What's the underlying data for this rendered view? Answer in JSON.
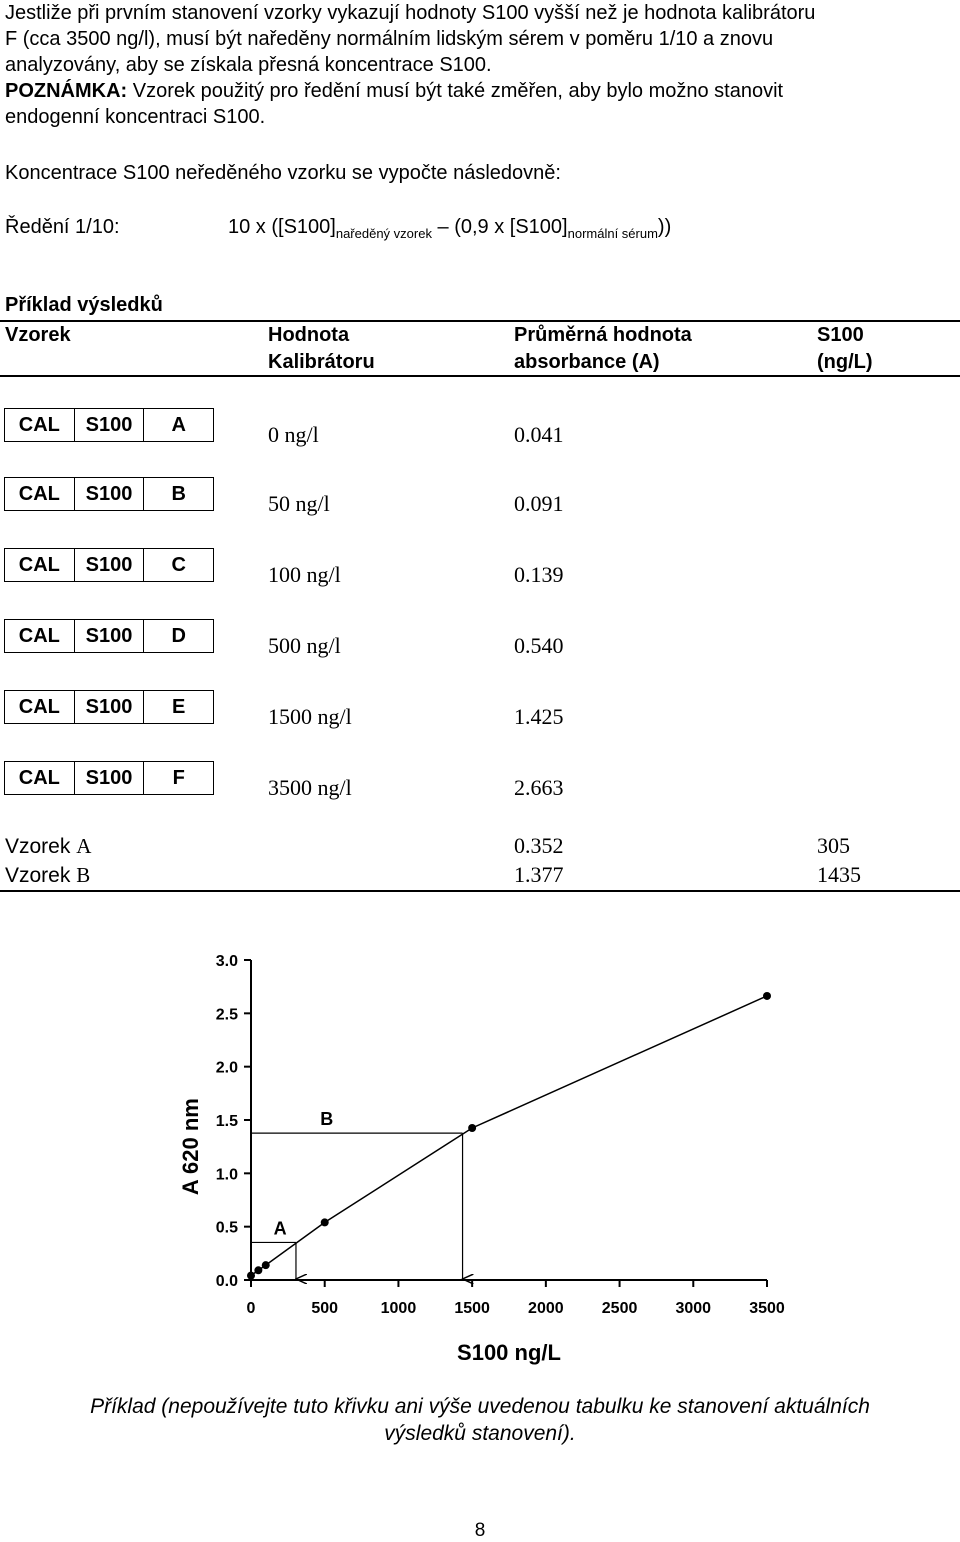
{
  "intro": {
    "line1": "Jestliže při prvním stanovení vzorky vykazují hodnoty S100 vyšší než je hodnota kalibrátoru",
    "line2": "F (cca 3500 ng/l), musí být naředěny normálním lidským sérem v poměru 1/10 a znovu",
    "line3": "analyzovány, aby se získala přesná koncentrace S100.",
    "note_label": "POZNÁMKA:",
    "note_text1": " Vzorek použitý pro ředění musí být také změřen, aby bylo možno stanovit",
    "note_text2": "endogenní koncentraci S100."
  },
  "calc": {
    "sentence": "Koncentrace S100 neředěného vzorku se vypočte následovně:",
    "label": "Ředění 1/10:",
    "f1": "10 x ([S100]",
    "sub1": "naředěný vzorek",
    "f2": " – (0,9 x [S100]",
    "sub2": "normální sérum",
    "f3": "))"
  },
  "results": {
    "title": "Příklad výsledků",
    "headers": {
      "sample": "Vzorek",
      "cal_value_1": "Hodnota",
      "cal_value_2": "Kalibrátoru",
      "abs_1": "Průměrná hodnota",
      "abs_2": "absorbance (A)",
      "s100_1": "S100",
      "s100_2": "(ng/L)"
    },
    "calibrators": [
      {
        "c1": "CAL",
        "c2": "S100",
        "c3": "A",
        "value": "0 ng/l",
        "abs": "0.041"
      },
      {
        "c1": "CAL",
        "c2": "S100",
        "c3": "B",
        "value": "50 ng/l",
        "abs": "0.091"
      },
      {
        "c1": "CAL",
        "c2": "S100",
        "c3": "C",
        "value": "100 ng/l",
        "abs": "0.139"
      },
      {
        "c1": "CAL",
        "c2": "S100",
        "c3": "D",
        "value": "500 ng/l",
        "abs": "0.540"
      },
      {
        "c1": "CAL",
        "c2": "S100",
        "c3": "E",
        "value": "1500 ng/l",
        "abs": "1.425"
      },
      {
        "c1": "CAL",
        "c2": "S100",
        "c3": "F",
        "value": "3500 ng/l",
        "abs": "2.663"
      }
    ],
    "samples": [
      {
        "label_a": "Vzorek ",
        "label_b": "A",
        "abs": "0.352",
        "s100": "305"
      },
      {
        "label_a": "Vzorek ",
        "label_b": "B",
        "abs": "1.377",
        "s100": "1435"
      }
    ]
  },
  "chart_data": {
    "type": "line",
    "ylabel": "A 620 nm",
    "xlabel": "S100 ng/L",
    "xlim": [
      0,
      3500
    ],
    "ylim": [
      0,
      3.0
    ],
    "x_ticks": [
      "0",
      "500",
      "1000",
      "1500",
      "2000",
      "2500",
      "3000",
      "3500"
    ],
    "y_ticks": [
      "0.0",
      "0.5",
      "1.0",
      "1.5",
      "2.0",
      "2.5",
      "3.0"
    ],
    "points": [
      {
        "x": 0,
        "y": 0.041
      },
      {
        "x": 50,
        "y": 0.091
      },
      {
        "x": 100,
        "y": 0.139
      },
      {
        "x": 500,
        "y": 0.54
      },
      {
        "x": 1500,
        "y": 1.425
      },
      {
        "x": 3500,
        "y": 2.663
      }
    ],
    "annotations": [
      {
        "label": "A",
        "absorbance": 0.352,
        "concentration": 305
      },
      {
        "label": "B",
        "absorbance": 1.377,
        "concentration": 1435
      }
    ],
    "grid": false
  },
  "footer": {
    "caption1": "Příklad (nepoužívejte tuto křivku ani výše uvedenou tabulku ke stanovení aktuálních",
    "caption2": "výsledků stanovení).",
    "page_number": "8"
  }
}
